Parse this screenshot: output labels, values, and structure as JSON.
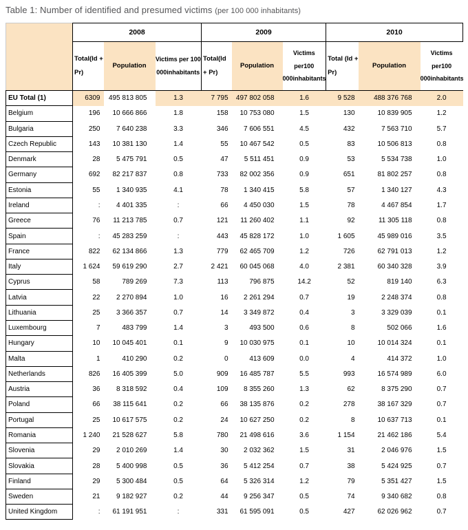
{
  "title": {
    "main": "Table 1: Number of identified and presumed victims",
    "note": "(per 100 000 inhabitants)"
  },
  "colors": {
    "highlight_fill": "#fbe3c2",
    "border": "#000000",
    "title_text": "#545456"
  },
  "header": {
    "years": [
      "2008",
      "2009",
      "2010"
    ],
    "subcolumns": [
      {
        "total": "Total(Id + Pr)",
        "population": "Population",
        "victims": "Victims per 100 000inhabitants"
      },
      {
        "total": "Total(Id + Pr)",
        "population": "Population",
        "victims": "Victims per100 000inhabitants"
      },
      {
        "total": "Total (Id + Pr)",
        "population": "Population",
        "victims": "Victims per100 000inhabitants"
      }
    ]
  },
  "rows": [
    {
      "country": "EU Total (1)",
      "highlight": true,
      "values": [
        "6309",
        "495 813 805",
        "1.3",
        "7 795",
        "497 802 058",
        "1.6",
        "9 528",
        "488 376 768",
        "2.0"
      ]
    },
    {
      "country": "Belgium",
      "highlight": false,
      "values": [
        "196",
        "10 666 866",
        "1.8",
        "158",
        "10 753 080",
        "1.5",
        "130",
        "10 839 905",
        "1.2"
      ]
    },
    {
      "country": "Bulgaria",
      "highlight": false,
      "values": [
        "250",
        "7 640 238",
        "3.3",
        "346",
        "7 606 551",
        "4.5",
        "432",
        "7 563 710",
        "5.7"
      ]
    },
    {
      "country": "Czech Republic",
      "highlight": false,
      "values": [
        "143",
        "10 381 130",
        "1.4",
        "55",
        "10 467 542",
        "0.5",
        "83",
        "10 506 813",
        "0.8"
      ]
    },
    {
      "country": "Denmark",
      "highlight": false,
      "values": [
        "28",
        "5 475 791",
        "0.5",
        "47",
        "5 511 451",
        "0.9",
        "53",
        "5 534 738",
        "1.0"
      ]
    },
    {
      "country": "Germany",
      "highlight": false,
      "values": [
        "692",
        "82 217 837",
        "0.8",
        "733",
        "82 002 356",
        "0.9",
        "651",
        "81 802 257",
        "0.8"
      ]
    },
    {
      "country": "Estonia",
      "highlight": false,
      "values": [
        "55",
        "1 340 935",
        "4.1",
        "78",
        "1 340 415",
        "5.8",
        "57",
        "1 340 127",
        "4.3"
      ]
    },
    {
      "country": "Ireland",
      "highlight": false,
      "values": [
        ":",
        "4 401 335",
        ":",
        "66",
        "4 450 030",
        "1.5",
        "78",
        "4 467 854",
        "1.7"
      ]
    },
    {
      "country": "Greece",
      "highlight": false,
      "values": [
        "76",
        "11 213 785",
        "0.7",
        "121",
        "11 260 402",
        "1.1",
        "92",
        "11 305 118",
        "0.8"
      ]
    },
    {
      "country": "Spain",
      "highlight": false,
      "values": [
        ":",
        "45 283 259",
        ":",
        "443",
        "45 828 172",
        "1.0",
        "1 605",
        "45 989 016",
        "3.5"
      ]
    },
    {
      "country": "France",
      "highlight": false,
      "values": [
        "822",
        "62 134 866",
        "1.3",
        "779",
        "62 465 709",
        "1.2",
        "726",
        "62 791 013",
        "1.2"
      ]
    },
    {
      "country": "Italy",
      "highlight": false,
      "values": [
        "1 624",
        "59 619 290",
        "2.7",
        "2 421",
        "60 045 068",
        "4.0",
        "2 381",
        "60 340 328",
        "3.9"
      ]
    },
    {
      "country": "Cyprus",
      "highlight": false,
      "values": [
        "58",
        "789 269",
        "7.3",
        "113",
        "796 875",
        "14.2",
        "52",
        "819 140",
        "6.3"
      ]
    },
    {
      "country": "Latvia",
      "highlight": false,
      "values": [
        "22",
        "2 270 894",
        "1.0",
        "16",
        "2 261 294",
        "0.7",
        "19",
        "2 248 374",
        "0.8"
      ]
    },
    {
      "country": "Lithuania",
      "highlight": false,
      "values": [
        "25",
        "3 366 357",
        "0.7",
        "14",
        "3 349 872",
        "0.4",
        "3",
        "3 329 039",
        "0.1"
      ]
    },
    {
      "country": "Luxembourg",
      "highlight": false,
      "values": [
        "7",
        "483 799",
        "1.4",
        "3",
        "493 500",
        "0.6",
        "8",
        "502 066",
        "1.6"
      ]
    },
    {
      "country": "Hungary",
      "highlight": false,
      "values": [
        "10",
        "10 045 401",
        "0.1",
        "9",
        "10 030 975",
        "0.1",
        "10",
        "10 014 324",
        "0.1"
      ]
    },
    {
      "country": "Malta",
      "highlight": false,
      "values": [
        "1",
        "410 290",
        "0.2",
        "0",
        "413 609",
        "0.0",
        "4",
        "414 372",
        "1.0"
      ]
    },
    {
      "country": "Netherlands",
      "highlight": false,
      "values": [
        "826",
        "16 405 399",
        "5.0",
        "909",
        "16 485 787",
        "5.5",
        "993",
        "16 574 989",
        "6.0"
      ]
    },
    {
      "country": "Austria",
      "highlight": false,
      "values": [
        "36",
        "8 318 592",
        "0.4",
        "109",
        "8 355 260",
        "1.3",
        "62",
        "8 375 290",
        "0.7"
      ]
    },
    {
      "country": "Poland",
      "highlight": false,
      "values": [
        "66",
        "38 115 641",
        "0.2",
        "66",
        "38 135 876",
        "0.2",
        "278",
        "38 167 329",
        "0.7"
      ]
    },
    {
      "country": "Portugal",
      "highlight": false,
      "values": [
        "25",
        "10 617 575",
        "0.2",
        "24",
        "10 627 250",
        "0.2",
        "8",
        "10 637 713",
        "0.1"
      ]
    },
    {
      "country": "Romania",
      "highlight": false,
      "values": [
        "1 240",
        "21 528 627",
        "5.8",
        "780",
        "21 498 616",
        "3.6",
        "1 154",
        "21 462 186",
        "5.4"
      ]
    },
    {
      "country": "Slovenia",
      "highlight": false,
      "values": [
        "29",
        "2 010 269",
        "1.4",
        "30",
        "2 032 362",
        "1.5",
        "31",
        "2 046 976",
        "1.5"
      ]
    },
    {
      "country": "Slovakia",
      "highlight": false,
      "values": [
        "28",
        "5 400 998",
        "0.5",
        "36",
        "5 412 254",
        "0.7",
        "38",
        "5 424 925",
        "0.7"
      ]
    },
    {
      "country": "Finland",
      "highlight": false,
      "values": [
        "29",
        "5 300 484",
        "0.5",
        "64",
        "5 326 314",
        "1.2",
        "79",
        "5 351 427",
        "1.5"
      ]
    },
    {
      "country": "Sweden",
      "highlight": false,
      "values": [
        "21",
        "9 182 927",
        "0.2",
        "44",
        "9 256 347",
        "0.5",
        "74",
        "9 340 682",
        "0.8"
      ]
    },
    {
      "country": "United Kingdom",
      "highlight": false,
      "values": [
        ":",
        "61 191 951",
        ":",
        "331",
        "61 595 091",
        "0.5",
        "427",
        "62 026 962",
        "0.7"
      ]
    }
  ]
}
